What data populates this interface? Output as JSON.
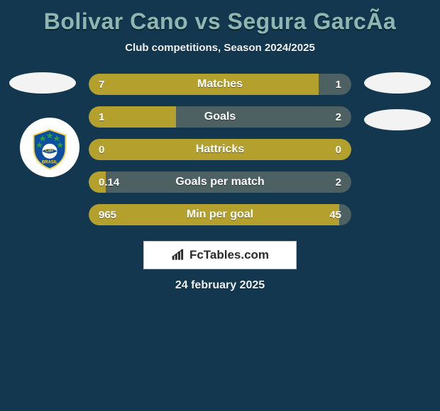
{
  "background_color": "#12374e",
  "title": {
    "text": "Bolivar Cano vs Segura GarcÃ­a",
    "color": "#8fb7b1",
    "fontsize": 32
  },
  "subtitle": {
    "text": "Club competitions, Season 2024/2025",
    "color": "#eef2f4",
    "fontsize": 15
  },
  "avatar_color": "#f3f3f3",
  "badge_bg": "#ffffff",
  "footer": {
    "bg": "#ffffff",
    "border": "#c8c8c8",
    "icon_color": "#2b2b2b",
    "text_color": "#2b2b2b",
    "brand": "FcTables.com"
  },
  "date": {
    "text": "24 february 2025",
    "color": "#eef2f4"
  },
  "bar_style": {
    "track_color": "#4d6062",
    "fill_color": "#b4a12d",
    "label_color": "#ffffff",
    "value_color": "#ffffff",
    "height": 30,
    "radius": 16
  },
  "bars": [
    {
      "label": "Matches",
      "left_val": "7",
      "right_val": "1",
      "left_pct": 87.5
    },
    {
      "label": "Goals",
      "left_val": "1",
      "right_val": "2",
      "left_pct": 33.3
    },
    {
      "label": "Hattricks",
      "left_val": "0",
      "right_val": "0",
      "left_pct": 100
    },
    {
      "label": "Goals per match",
      "left_val": "0.14",
      "right_val": "2",
      "left_pct": 6.5
    },
    {
      "label": "Min per goal",
      "left_val": "965",
      "right_val": "45",
      "left_pct": 95.5
    }
  ]
}
